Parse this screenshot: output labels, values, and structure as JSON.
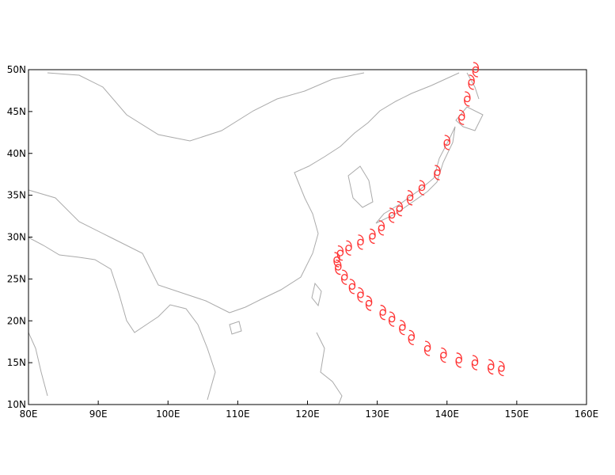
{
  "chart_data": {
    "type": "track",
    "x": [
      147.8,
      146.3,
      144.0,
      141.7,
      139.5,
      137.2,
      134.9,
      133.6,
      132.1,
      130.8,
      128.8,
      127.6,
      126.4,
      125.3,
      124.4,
      124.2,
      124.7,
      125.9,
      127.6,
      129.3,
      130.6,
      132.1,
      133.2,
      134.7,
      136.4,
      138.6,
      140.0,
      142.1,
      142.9,
      143.5,
      144.1
    ],
    "values": [
      14.3,
      14.5,
      15.0,
      15.3,
      15.9,
      16.7,
      18.0,
      19.2,
      20.2,
      21.0,
      22.1,
      23.1,
      24.1,
      25.2,
      26.4,
      27.3,
      28.1,
      28.7,
      29.4,
      30.1,
      31.1,
      32.6,
      33.4,
      34.7,
      35.9,
      37.7,
      41.3,
      44.3,
      46.5,
      48.5,
      50.0
    ],
    "color": "#ff3333",
    "xlim": [
      80,
      160
    ],
    "ylim": [
      10,
      50
    ],
    "xticks": [
      {
        "value": 80,
        "label": "80E"
      },
      {
        "value": 90,
        "label": "90E"
      },
      {
        "value": 100,
        "label": "100E"
      },
      {
        "value": 110,
        "label": "110E"
      },
      {
        "value": 120,
        "label": "120E"
      },
      {
        "value": 130,
        "label": "130E"
      },
      {
        "value": 140,
        "label": "140E"
      },
      {
        "value": 150,
        "label": "150E"
      },
      {
        "value": 160,
        "label": "160E"
      }
    ],
    "yticks": [
      {
        "value": 10,
        "label": "10N"
      },
      {
        "value": 15,
        "label": "15N"
      },
      {
        "value": 20,
        "label": "20N"
      },
      {
        "value": 25,
        "label": "25N"
      },
      {
        "value": 30,
        "label": "30N"
      },
      {
        "value": 35,
        "label": "35N"
      },
      {
        "value": 40,
        "label": "40N"
      },
      {
        "value": 45,
        "label": "45N"
      },
      {
        "value": 50,
        "label": "50N"
      }
    ]
  }
}
